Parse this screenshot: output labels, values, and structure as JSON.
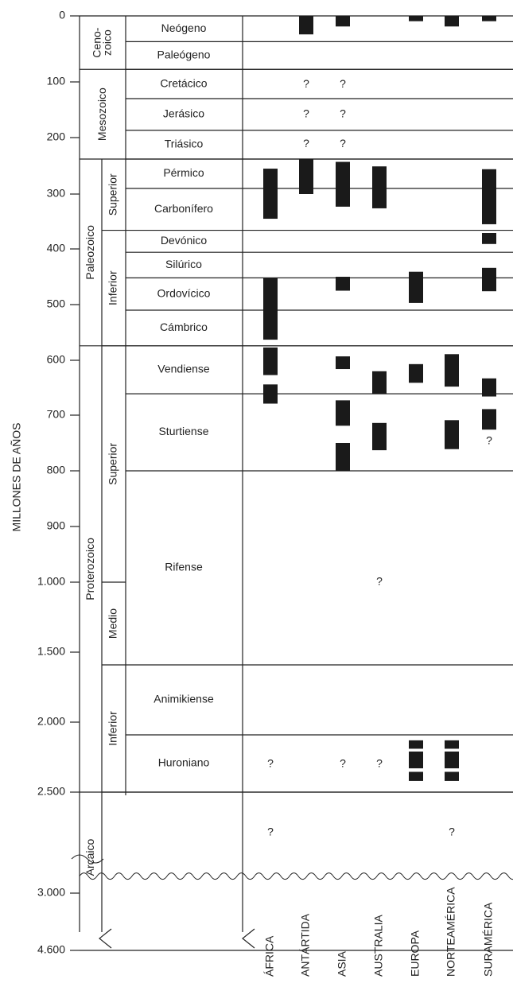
{
  "y_axis": {
    "label": "MILLONES DE AÑOS",
    "ticks": [
      0,
      100,
      200,
      300,
      400,
      500,
      600,
      700,
      800,
      900,
      {
        "value": 1000,
        "label": "1.000"
      },
      {
        "value": 1500,
        "label": "1.500"
      },
      {
        "value": 2000,
        "label": "2.000"
      },
      {
        "value": 2500,
        "label": "2.500"
      },
      {
        "value": 3000,
        "label": "3.000"
      },
      {
        "value": 4600,
        "label": "4.600"
      }
    ]
  },
  "eras": [
    {
      "lines": [
        "Ceno-",
        "zoico"
      ],
      "start": 0,
      "end": 81
    },
    {
      "lines": [
        "Mesozoico"
      ],
      "start": 81,
      "end": 238
    },
    {
      "lines": [
        "Paleozoico"
      ],
      "start": 238,
      "end": 574,
      "subdivisions": [
        {
          "name": "Superior",
          "start": 238,
          "end": 366
        },
        {
          "name": "Inferior",
          "start": 366,
          "end": 574
        }
      ]
    },
    {
      "lines": [
        "Proterozoico"
      ],
      "start": 574,
      "end": 2500,
      "subdivisions": [
        {
          "name": "Superior",
          "start": 574,
          "end": 1000
        },
        {
          "name": "Medio",
          "start": 1000,
          "end": 1591
        },
        {
          "name": "Inferior",
          "start": 1591,
          "end": 2500
        }
      ]
    },
    {
      "lines": [
        "Arcaico"
      ],
      "start": 2500,
      "end": 4600
    }
  ],
  "periods": [
    {
      "name": "Neógeno",
      "start": 0,
      "end": 39
    },
    {
      "name": "Paleógeno",
      "start": 39,
      "end": 81
    },
    {
      "name": "Cretácico",
      "start": 81,
      "end": 130
    },
    {
      "name": "Jerásico",
      "start": 130,
      "end": 187
    },
    {
      "name": "Triásico",
      "start": 187,
      "end": 238
    },
    {
      "name": "Pérmico",
      "start": 238,
      "end": 290
    },
    {
      "name": "Carbonífero",
      "start": 290,
      "end": 366
    },
    {
      "name": "Devónico",
      "start": 366,
      "end": 406
    },
    {
      "name": "Silúrico",
      "start": 406,
      "end": 452
    },
    {
      "name": "Ordovícico",
      "start": 452,
      "end": 510
    },
    {
      "name": "Cámbrico",
      "start": 510,
      "end": 574
    },
    {
      "name": "Vendiense",
      "start": 574,
      "end": 661
    },
    {
      "name": "Sturtiense",
      "start": 661,
      "end": 800
    },
    {
      "name": "Rifense",
      "start": 800,
      "end": 1591
    },
    {
      "name": "Animikiense",
      "start": 1591,
      "end": 2091
    },
    {
      "name": "Huroniano",
      "start": 2091,
      "end": 2500
    }
  ],
  "continents": [
    {
      "name": "ÁFRICA",
      "intervals": [
        [
          255,
          345
        ],
        [
          452,
          563
        ],
        [
          577,
          627
        ],
        [
          644,
          679
        ]
      ],
      "uncertain": [
        {
          "at": 2300,
          "label": "?"
        },
        {
          "at": 2700,
          "label": "?"
        }
      ]
    },
    {
      "name": "ANTÁRTIDA",
      "intervals": [
        [
          0,
          28
        ],
        [
          238,
          300
        ]
      ],
      "uncertain": [
        {
          "at": 105,
          "label": "?"
        },
        {
          "at": 158,
          "label": "?"
        },
        {
          "at": 212,
          "label": "?"
        }
      ]
    },
    {
      "name": "ASIA",
      "intervals": [
        [
          0,
          16
        ],
        [
          243,
          323
        ],
        [
          450,
          475
        ],
        [
          593,
          616
        ],
        [
          673,
          719
        ],
        [
          750,
          800
        ]
      ],
      "uncertain": [
        {
          "at": 105,
          "label": "?"
        },
        {
          "at": 158,
          "label": "?"
        },
        {
          "at": 212,
          "label": "?"
        },
        {
          "at": 2300,
          "label": "?"
        }
      ]
    },
    {
      "name": "AUSTRALIA",
      "intervals": [
        [
          251,
          326
        ],
        [
          620,
          661
        ],
        [
          714,
          763
        ]
      ],
      "uncertain": [
        {
          "at": 1000,
          "label": "?"
        },
        {
          "at": 2300,
          "label": "?"
        }
      ]
    },
    {
      "name": "EUROPA",
      "intervals": [
        [
          0,
          8
        ],
        [
          441,
          497
        ],
        [
          607,
          641
        ],
        [
          2130,
          2190
        ],
        [
          2210,
          2330
        ],
        [
          2355,
          2420
        ]
      ],
      "uncertain": []
    },
    {
      "name": "NORTEAMÉRICA",
      "intervals": [
        [
          0,
          16
        ],
        [
          589,
          648
        ],
        [
          709,
          761
        ],
        [
          2130,
          2190
        ],
        [
          2210,
          2330
        ],
        [
          2355,
          2420
        ]
      ],
      "uncertain": [
        {
          "at": 2700,
          "label": "?"
        }
      ]
    },
    {
      "name": "SURAMÉRICA",
      "intervals": [
        [
          0,
          8
        ],
        [
          256,
          355
        ],
        [
          371,
          391
        ],
        [
          434,
          476
        ],
        [
          633,
          666
        ],
        [
          689,
          726
        ]
      ],
      "uncertain": [
        {
          "at": 747,
          "label": "?"
        }
      ]
    }
  ]
}
